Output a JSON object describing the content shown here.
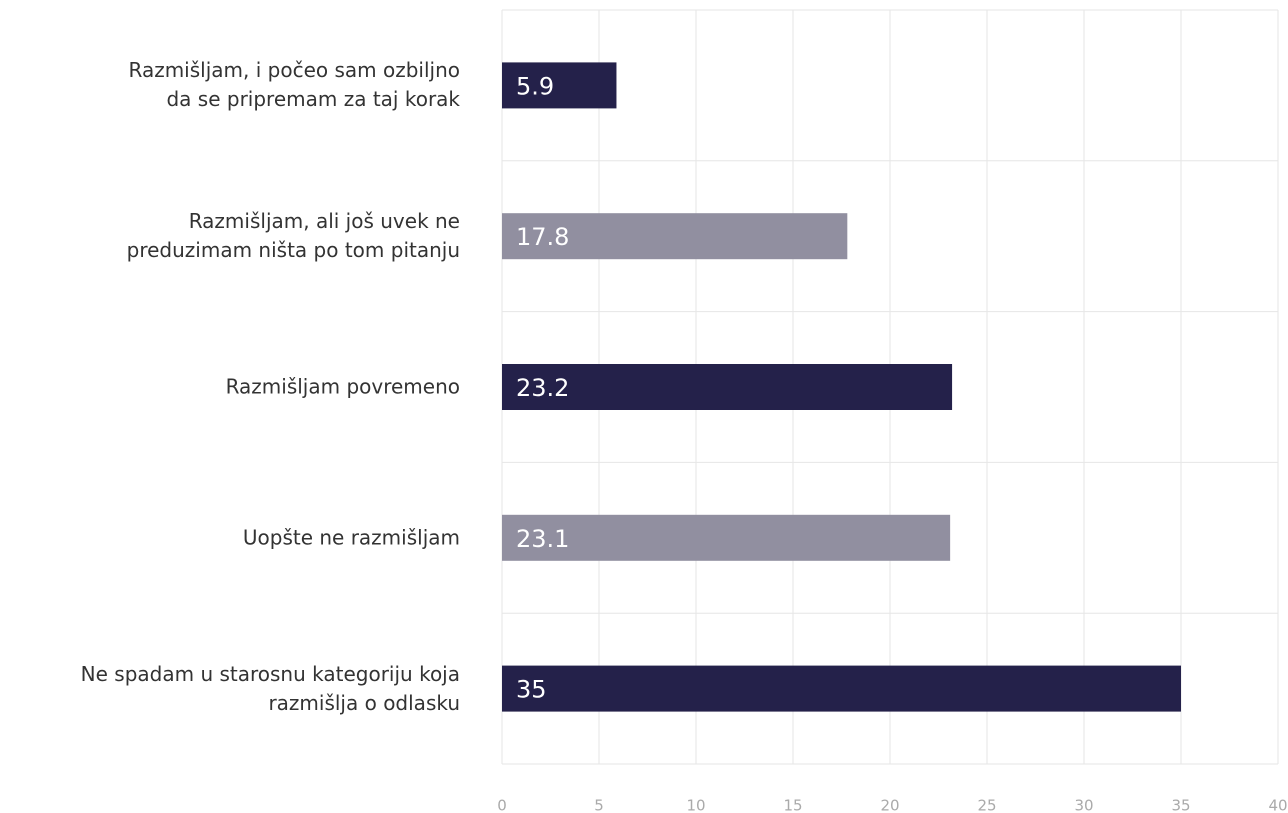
{
  "chart_data": {
    "type": "bar",
    "orientation": "horizontal",
    "categories": [
      "Razmišljam, i počeo sam ozbiljno\nda se pripremam za taj korak",
      "Razmišljam, ali još uvek ne\npreduzimam ništa po tom pitanju",
      "Razmišljam povremeno",
      "Uopšte ne razmišljam",
      "Ne spadam u starosnu kategoriju koja\nrazmišlja o odlasku"
    ],
    "values": [
      5.9,
      17.8,
      23.2,
      23.1,
      35
    ],
    "colors": [
      "#24214a",
      "#918fa0",
      "#24214a",
      "#918fa0",
      "#24214a"
    ],
    "xlim": [
      0,
      40
    ],
    "xticks": [
      0,
      5,
      10,
      15,
      20,
      25,
      30,
      35,
      40
    ],
    "grid": true
  }
}
